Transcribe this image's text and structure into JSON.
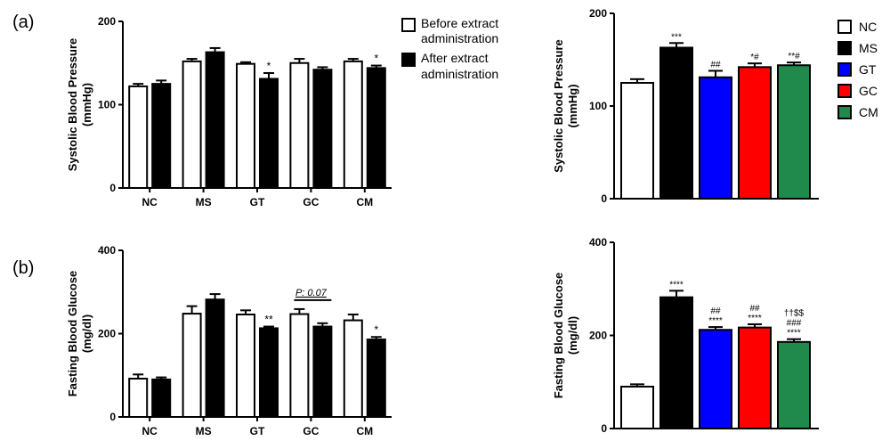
{
  "panels": {
    "a": "(a)",
    "b": "(b)"
  },
  "colors": {
    "NC": "#ffffff",
    "MS": "#000000",
    "GT": "#0000ff",
    "GC": "#ff0000",
    "CM": "#1f8a4c"
  },
  "legend_before_after": {
    "before": [
      "Before extract",
      "administration"
    ],
    "after": [
      "After extract",
      "administration"
    ]
  },
  "legend_groups": [
    "NC",
    "MS",
    "GT",
    "GC",
    "CM"
  ],
  "chart_data": [
    {
      "id": "sbp_before_after",
      "type": "bar",
      "ylabel": [
        "Systolic Blood Pressure",
        "(mmHg)"
      ],
      "ylim": [
        0,
        200
      ],
      "yticks": [
        0,
        100,
        200
      ],
      "categories": [
        "NC",
        "MS",
        "GT",
        "GC",
        "CM"
      ],
      "series": [
        {
          "name": "Before extract administration",
          "values": [
            122,
            152,
            149,
            150,
            152
          ],
          "errors": [
            3,
            3,
            2,
            5,
            3
          ]
        },
        {
          "name": "After extract administration",
          "values": [
            125,
            163,
            131,
            142,
            144
          ],
          "errors": [
            4,
            5,
            7,
            3,
            3
          ]
        }
      ],
      "annotations": [
        {
          "category": "GT",
          "series": 1,
          "text": "*"
        },
        {
          "category": "CM",
          "series": 1,
          "text": "*"
        }
      ]
    },
    {
      "id": "sbp_groups",
      "type": "bar",
      "ylabel": [
        "Systolic Blood Pressure",
        "(mmHg)"
      ],
      "ylim": [
        0,
        200
      ],
      "yticks": [
        0,
        100,
        200
      ],
      "categories": [
        "NC",
        "MS",
        "GT",
        "GC",
        "CM"
      ],
      "values": [
        125,
        163,
        131,
        142,
        144
      ],
      "errors": [
        4,
        5,
        7,
        4,
        3
      ],
      "annotations": [
        [
          "***"
        ],
        [
          "##"
        ],
        [
          "*#"
        ],
        [
          "**#"
        ]
      ],
      "annotation_categories": [
        "MS",
        "GT",
        "GC",
        "CM"
      ]
    },
    {
      "id": "fbg_before_after",
      "type": "bar",
      "ylabel": [
        "Fasting Blood Glucose",
        "(mg/dl)"
      ],
      "ylim": [
        0,
        400
      ],
      "yticks": [
        0,
        200,
        400
      ],
      "categories": [
        "NC",
        "MS",
        "GT",
        "GC",
        "CM"
      ],
      "series": [
        {
          "name": "Before extract administration",
          "values": [
            92,
            248,
            246,
            247,
            232
          ],
          "errors": [
            10,
            18,
            10,
            12,
            14
          ]
        },
        {
          "name": "After extract administration",
          "values": [
            90,
            282,
            213,
            217,
            186
          ],
          "errors": [
            5,
            13,
            4,
            8,
            6
          ]
        }
      ],
      "annotations": [
        {
          "category": "GT",
          "series": 1,
          "text": "**"
        },
        {
          "category": "CM",
          "series": 1,
          "text": "*"
        }
      ],
      "bracket": {
        "category": "GC",
        "text": "P: 0.07"
      }
    },
    {
      "id": "fbg_groups",
      "type": "bar",
      "ylabel": [
        "Fasting Blood Glucose",
        "(mg/dl)"
      ],
      "ylim": [
        0,
        400
      ],
      "yticks": [
        0,
        200,
        400
      ],
      "categories": [
        "NC",
        "MS",
        "GT",
        "GC",
        "CM"
      ],
      "values": [
        90,
        282,
        212,
        217,
        186
      ],
      "errors": [
        5,
        14,
        6,
        7,
        6
      ],
      "annotations": [
        [
          "****"
        ],
        [
          "##",
          "****"
        ],
        [
          "##",
          "****"
        ],
        [
          "††$$",
          "###",
          "****"
        ]
      ],
      "annotation_categories": [
        "MS",
        "GT",
        "GC",
        "CM"
      ]
    }
  ]
}
